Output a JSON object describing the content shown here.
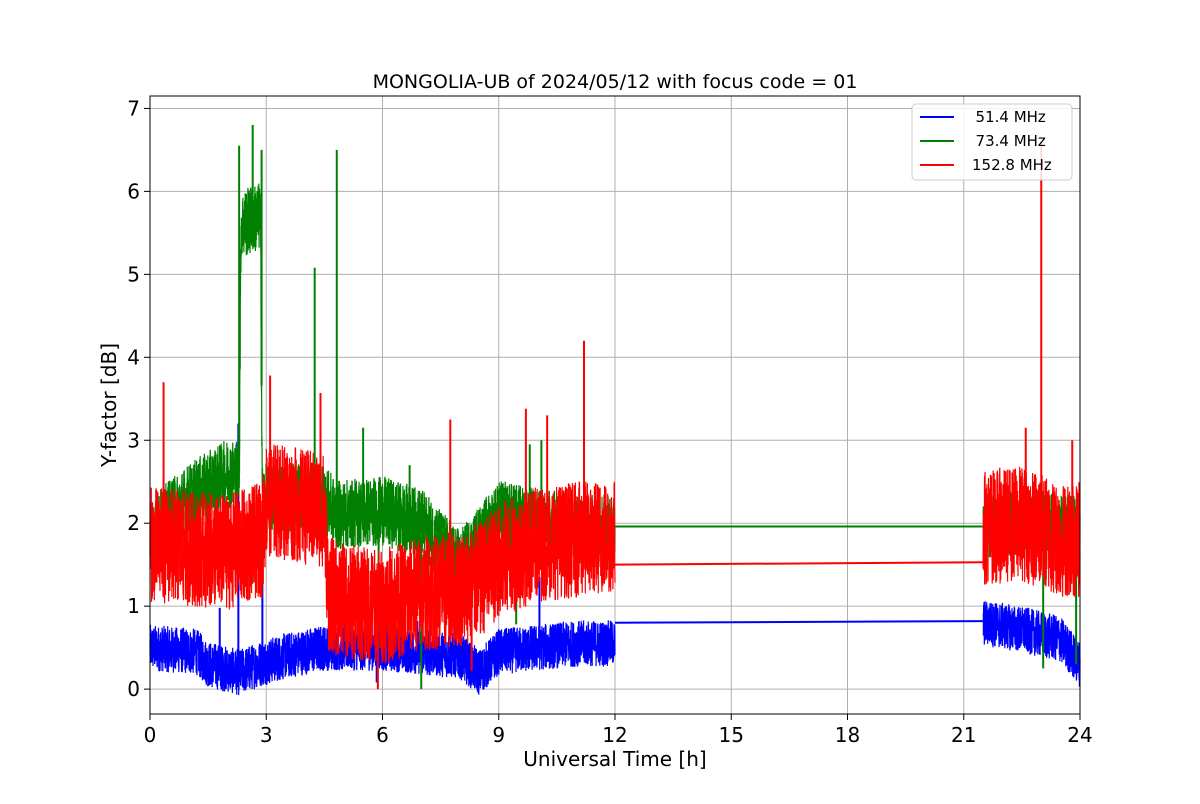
{
  "chart_data": {
    "type": "line",
    "title": "MONGOLIA-UB of 2024/05/12 with focus code = 01",
    "xlabel": "Universal Time [h]",
    "ylabel": "Y-factor [dB]",
    "xlim": [
      0,
      24
    ],
    "ylim": [
      -0.3,
      7.15
    ],
    "xticks": [
      0,
      3,
      6,
      9,
      12,
      15,
      18,
      21,
      24
    ],
    "yticks": [
      0,
      1,
      2,
      3,
      4,
      5,
      6,
      7
    ],
    "grid": true,
    "legend": "top-right",
    "series": [
      {
        "name": "  51.4 MHz",
        "color": "#0000ff",
        "profile": [
          [
            0,
            0.5
          ],
          [
            1.2,
            0.45
          ],
          [
            1.5,
            0.3
          ],
          [
            2.3,
            0.2
          ],
          [
            2.8,
            0.3
          ],
          [
            3.5,
            0.4
          ],
          [
            4.5,
            0.5
          ],
          [
            6,
            0.5
          ],
          [
            7,
            0.45
          ],
          [
            8,
            0.4
          ],
          [
            8.5,
            0.2
          ],
          [
            9,
            0.45
          ],
          [
            10,
            0.5
          ],
          [
            11,
            0.55
          ],
          [
            12,
            0.55
          ]
        ],
        "spikes": [
          [
            1.8,
            0.98
          ],
          [
            2.28,
            3.2
          ],
          [
            2.9,
            1.65
          ],
          [
            10.05,
            1.35
          ],
          [
            6.5,
            0.85
          ],
          [
            6.9,
            0.82
          ],
          [
            8.6,
            0.0
          ],
          [
            5.85,
            0.08
          ]
        ],
        "flat": [
          [
            12,
            0.8
          ],
          [
            21.5,
            0.82
          ]
        ],
        "tail": [
          [
            21.5,
            0.8
          ],
          [
            22.5,
            0.72
          ],
          [
            23.5,
            0.6
          ],
          [
            24,
            0.3
          ]
        ]
      },
      {
        "name": "  73.4 MHz",
        "color": "#008000",
        "profile": [
          [
            0,
            1.9
          ],
          [
            1,
            2.3
          ],
          [
            2,
            2.6
          ],
          [
            2.3,
            2.6
          ],
          [
            2.35,
            5.6
          ],
          [
            2.85,
            5.7
          ],
          [
            2.9,
            2.3
          ],
          [
            3.5,
            2.3
          ],
          [
            4.5,
            2.3
          ],
          [
            4.8,
            2.1
          ],
          [
            6,
            2.15
          ],
          [
            7,
            2.0
          ],
          [
            8,
            1.5
          ],
          [
            9,
            2.1
          ],
          [
            10,
            2.0
          ],
          [
            12,
            1.9
          ]
        ],
        "spikes": [
          [
            2.3,
            6.55
          ],
          [
            2.65,
            6.8
          ],
          [
            2.88,
            6.5
          ],
          [
            4.25,
            5.08
          ],
          [
            4.82,
            6.5
          ],
          [
            5.5,
            3.15
          ],
          [
            6.7,
            2.7
          ],
          [
            7,
            0.0
          ],
          [
            9.45,
            0.78
          ],
          [
            9.8,
            2.95
          ],
          [
            10.1,
            3.0
          ],
          [
            10.6,
            2.25
          ],
          [
            5.9,
            0.5
          ]
        ],
        "flat": [
          [
            12,
            1.96
          ],
          [
            21.5,
            1.96
          ]
        ],
        "tail": [
          [
            21.5,
            1.96
          ],
          [
            23,
            2.0
          ],
          [
            24,
            1.9
          ]
        ],
        "tail_spikes": [
          [
            23.05,
            0.25
          ],
          [
            23.9,
            0.3
          ]
        ]
      },
      {
        "name": "152.8 MHz",
        "color": "#ff0000",
        "profile": [
          [
            0,
            1.75
          ],
          [
            1,
            1.7
          ],
          [
            2,
            1.65
          ],
          [
            2.9,
            1.8
          ],
          [
            3,
            2.3
          ],
          [
            4.5,
            2.15
          ],
          [
            4.6,
            1.15
          ],
          [
            5,
            1.05
          ],
          [
            6,
            1.0
          ],
          [
            7,
            1.15
          ],
          [
            8,
            1.2
          ],
          [
            8.5,
            1.3
          ],
          [
            9,
            1.55
          ],
          [
            10,
            1.75
          ],
          [
            11,
            1.8
          ],
          [
            12,
            1.85
          ]
        ],
        "spikes": [
          [
            0.35,
            3.7
          ],
          [
            3.1,
            3.78
          ],
          [
            4.4,
            3.57
          ],
          [
            7.75,
            3.25
          ],
          [
            9.7,
            3.38
          ],
          [
            10.25,
            3.3
          ],
          [
            11.2,
            4.2
          ],
          [
            5.88,
            0.0
          ],
          [
            8.3,
            0.22
          ],
          [
            6.2,
            0.58
          ]
        ],
        "flat": [
          [
            12,
            1.5
          ],
          [
            21.5,
            1.53
          ]
        ],
        "tail": [
          [
            21.5,
            1.95
          ],
          [
            22.5,
            2.0
          ],
          [
            23.5,
            1.8
          ],
          [
            24,
            1.8
          ]
        ],
        "tail_spikes": [
          [
            23,
            6.6
          ],
          [
            22.6,
            3.15
          ],
          [
            23.8,
            3.0
          ]
        ]
      }
    ]
  }
}
